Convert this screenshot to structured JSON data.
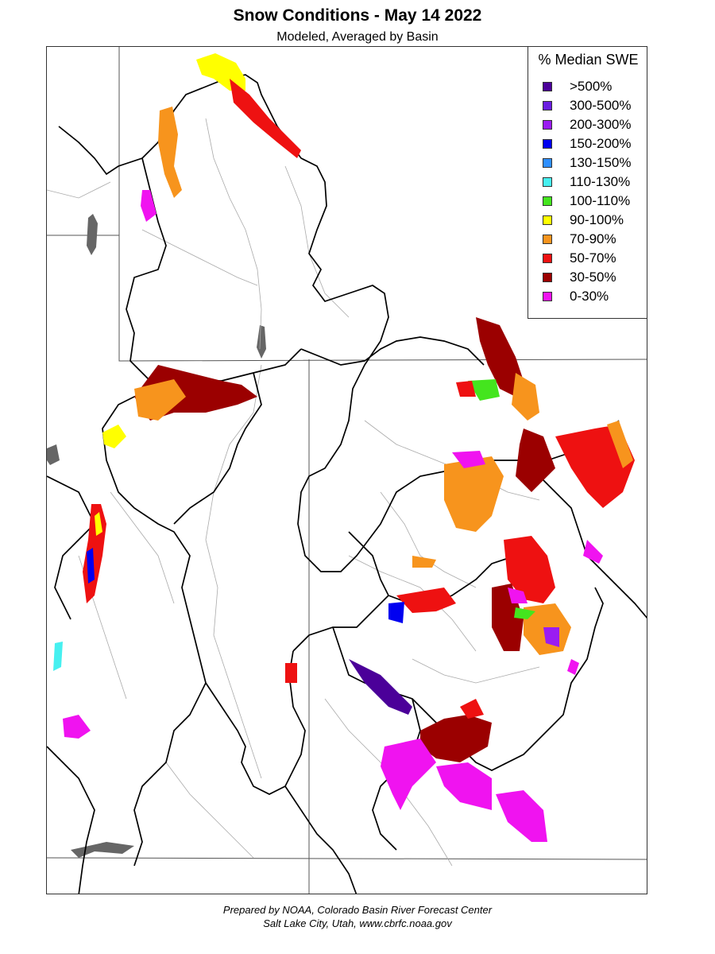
{
  "header": {
    "title": "Snow Conditions - May 14 2022",
    "subtitle": "Modeled, Averaged by Basin"
  },
  "legend": {
    "title": "% Median SWE",
    "items": [
      {
        "label": ">500%",
        "color": "#4b0099"
      },
      {
        "label": "300-500%",
        "color": "#6a1de0"
      },
      {
        "label": "200-300%",
        "color": "#9a1cf2"
      },
      {
        "label": "150-200%",
        "color": "#0000f0"
      },
      {
        "label": "130-150%",
        "color": "#2f8fff"
      },
      {
        "label": "110-130%",
        "color": "#46f0f0"
      },
      {
        "label": "100-110%",
        "color": "#44e51e"
      },
      {
        "label": "90-100%",
        "color": "#ffff00"
      },
      {
        "label": "70-90%",
        "color": "#f7941d"
      },
      {
        "label": "50-70%",
        "color": "#ee1111"
      },
      {
        "label": "30-50%",
        "color": "#9b0000"
      },
      {
        "label": "0-30%",
        "color": "#f013f0"
      }
    ]
  },
  "footer": {
    "line1": "Prepared by NOAA, Colorado Basin River Forecast Center",
    "line2": "Salt Lake City, Utah, www.cbrfc.noaa.gov"
  }
}
